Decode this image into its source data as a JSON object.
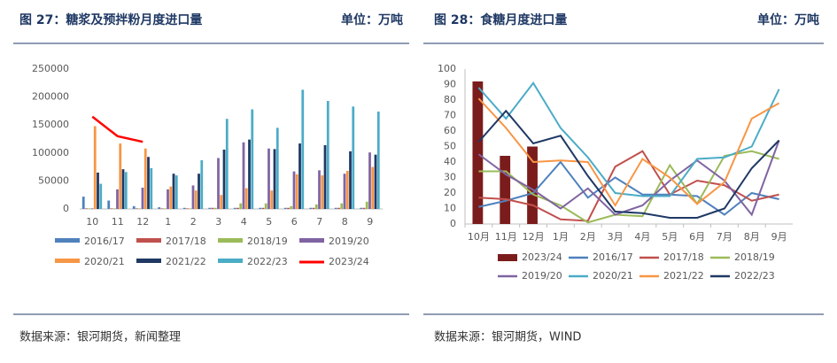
{
  "chart_data": [
    {
      "type": "bar",
      "title": "图 27：糖浆及预拌粉月度进口量",
      "unit": "单位：万吨",
      "source": "数据来源：银河期货，新闻整理",
      "categories": [
        "10",
        "11",
        "12",
        "1",
        "2",
        "3",
        "4",
        "5",
        "6",
        "7",
        "8",
        "9"
      ],
      "ylim": [
        0,
        250000
      ],
      "yticks": [
        0,
        50000,
        100000,
        150000,
        200000,
        250000
      ],
      "grid": false,
      "series": [
        {
          "name": "2016/17",
          "color": "#4f81bd",
          "values": [
            22000,
            15000,
            5000,
            3000,
            2000,
            2000,
            2000,
            2000,
            2000,
            2000,
            2000,
            2000
          ]
        },
        {
          "name": "2017/18",
          "color": "#c0504d",
          "values": [
            1000,
            1000,
            1000,
            1000,
            1000,
            2000,
            2000,
            2000,
            2000,
            2000,
            2000,
            2000
          ]
        },
        {
          "name": "2018/19",
          "color": "#9bbb59",
          "values": [
            1000,
            1000,
            1000,
            1000,
            1000,
            2000,
            10000,
            10000,
            5000,
            8000,
            10000,
            13000
          ]
        },
        {
          "name": "2019/20",
          "color": "#8064a2",
          "values": [
            1000,
            35000,
            38000,
            35000,
            42000,
            91000,
            119000,
            108000,
            67000,
            69000,
            63000,
            101000
          ]
        },
        {
          "name": "2020/21",
          "color": "#f79646",
          "values": [
            148000,
            117000,
            108000,
            40000,
            33000,
            25000,
            37000,
            33000,
            62000,
            60000,
            68000,
            75000
          ]
        },
        {
          "name": "2021/22",
          "color": "#1f3864",
          "values": [
            65000,
            71000,
            93000,
            63000,
            63000,
            106000,
            124000,
            107000,
            117000,
            114000,
            103000,
            97000
          ]
        },
        {
          "name": "2022/23",
          "color": "#4bacc6",
          "values": [
            45000,
            66000,
            73000,
            60000,
            87000,
            161000,
            178000,
            145000,
            213000,
            193000,
            183000,
            174000
          ]
        },
        {
          "name": "2023/24",
          "color": "#ff0000",
          "type": "line",
          "values": [
            165000,
            130000,
            120000,
            null,
            null,
            null,
            null,
            null,
            null,
            null,
            null,
            null
          ]
        }
      ]
    },
    {
      "type": "line",
      "title": "图 28：食糖月度进口量",
      "unit": "单位：万吨",
      "source": "数据来源：银河期货，WIND",
      "categories": [
        "10月",
        "11月",
        "12月",
        "1月",
        "2月",
        "3月",
        "4月",
        "5月",
        "6月",
        "7月",
        "8月",
        "9月"
      ],
      "ylim": [
        0,
        100
      ],
      "yticks": [
        0,
        10,
        20,
        30,
        40,
        50,
        60,
        70,
        80,
        90,
        100
      ],
      "grid": false,
      "series": [
        {
          "name": "2023/24",
          "color": "#7b1c1c",
          "type": "bar",
          "values": [
            92,
            44,
            50,
            null,
            null,
            null,
            null,
            null,
            null,
            null,
            null,
            null
          ]
        },
        {
          "name": "2016/17",
          "color": "#4f81bd",
          "values": [
            11,
            15,
            20,
            40,
            17,
            30,
            19,
            19,
            18,
            6,
            20,
            16
          ]
        },
        {
          "name": "2017/18",
          "color": "#c0504d",
          "values": [
            17,
            16,
            12,
            3,
            2,
            37,
            47,
            19,
            28,
            25,
            15,
            19
          ]
        },
        {
          "name": "2018/19",
          "color": "#9bbb59",
          "values": [
            34,
            34,
            19,
            12,
            1,
            6,
            5,
            38,
            13,
            44,
            47,
            42
          ]
        },
        {
          "name": "2019/20",
          "color": "#8064a2",
          "values": [
            45,
            32,
            22,
            10,
            23,
            6,
            12,
            28,
            41,
            28,
            6,
            54
          ]
        },
        {
          "name": "2020/21",
          "color": "#4bacc6",
          "values": [
            88,
            68,
            91,
            62,
            43,
            20,
            18,
            18,
            42,
            43,
            50,
            87
          ]
        },
        {
          "name": "2021/22",
          "color": "#f79646",
          "values": [
            81,
            62,
            40,
            41,
            40,
            12,
            42,
            30,
            13,
            27,
            68,
            78
          ]
        },
        {
          "name": "2022/23",
          "color": "#1f3864",
          "values": [
            53,
            73,
            52,
            57,
            31,
            8,
            7,
            4,
            4,
            10,
            36,
            54
          ]
        }
      ]
    }
  ]
}
